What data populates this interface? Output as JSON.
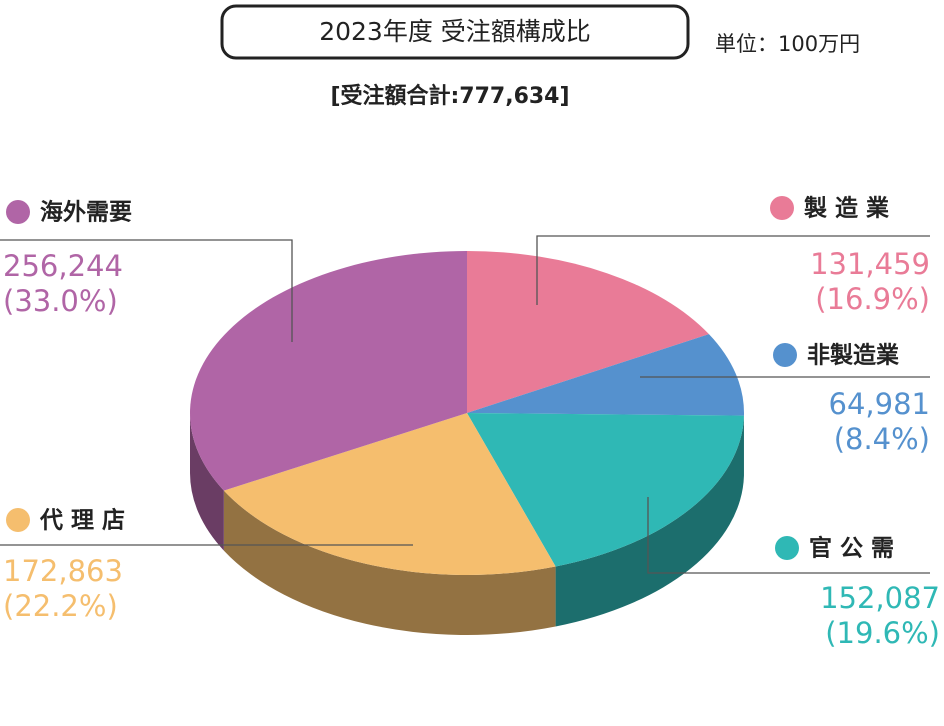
{
  "chart_data": {
    "type": "pie3d",
    "title": "2023年度 受注額構成比",
    "unit": "単位：100万円",
    "subtitle": "[受注額合計:777,634]",
    "categories": [
      "製 造 業",
      "非製造業",
      "官 公 需",
      "代 理 店",
      "海外需要"
    ],
    "values": [
      131459,
      64981,
      152087,
      172863,
      256244
    ],
    "value_labels": [
      "131,459",
      "64,981",
      "152,087",
      "172,863",
      "256,244"
    ],
    "percent_labels": [
      "(16.9%)",
      "(8.4%)",
      "(19.6%)",
      "(22.2%)",
      "(33.0%)"
    ],
    "colors": [
      "#e97b97",
      "#5591ce",
      "#2fb8b5",
      "#f5be6e",
      "#b065a6"
    ]
  }
}
